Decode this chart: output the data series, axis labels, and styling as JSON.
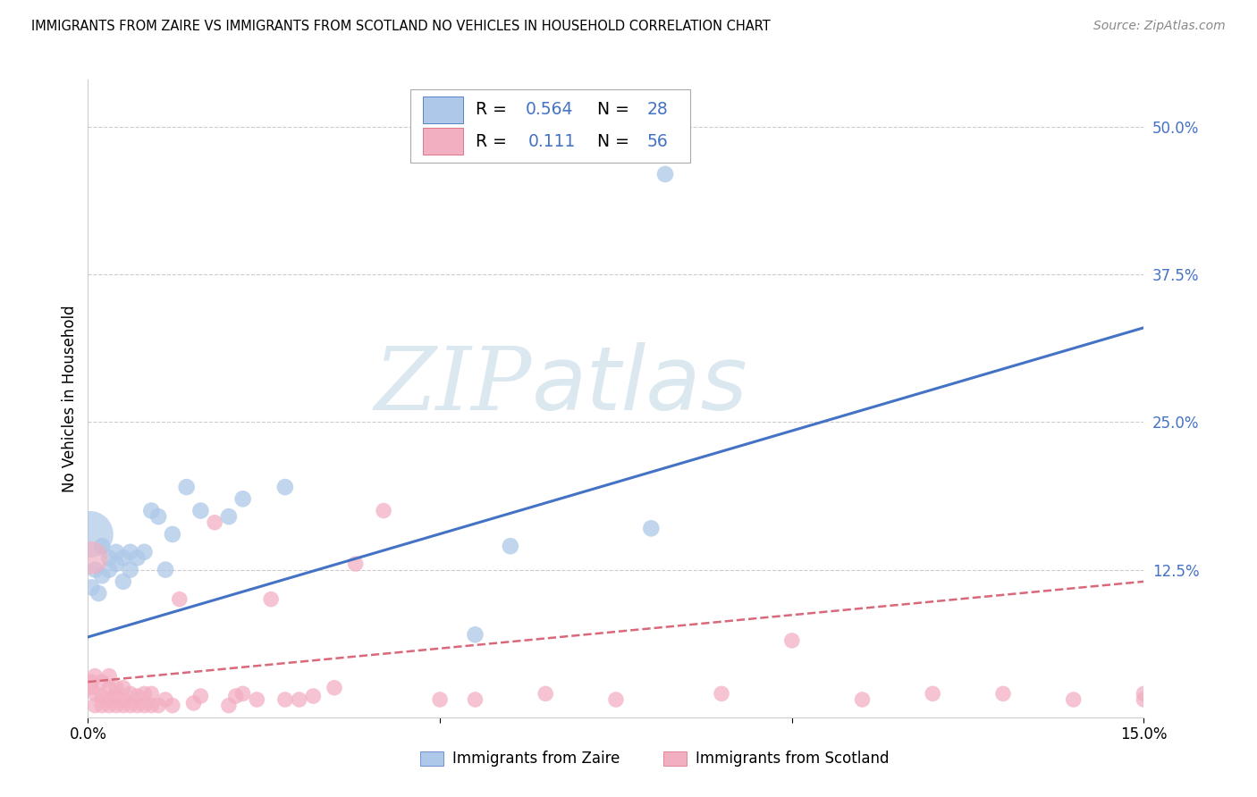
{
  "title": "IMMIGRANTS FROM ZAIRE VS IMMIGRANTS FROM SCOTLAND NO VEHICLES IN HOUSEHOLD CORRELATION CHART",
  "source": "Source: ZipAtlas.com",
  "ylabel": "No Vehicles in Household",
  "legend_labels": [
    "Immigrants from Zaire",
    "Immigrants from Scotland"
  ],
  "zaire_color": "#adc8e8",
  "scotland_color": "#f2afc2",
  "zaire_line_color": "#4472c4",
  "scotland_line_color": "#d9687a",
  "R_zaire": 0.564,
  "N_zaire": 28,
  "R_scotland": 0.111,
  "N_scotland": 56,
  "xlim": [
    0.0,
    0.15
  ],
  "ylim": [
    0.0,
    0.54
  ],
  "ytick_values_right": [
    0.5,
    0.375,
    0.25,
    0.125
  ],
  "ytick_labels_right": [
    "50.0%",
    "37.5%",
    "25.0%",
    "12.5%"
  ],
  "grid_color": "#cccccc",
  "background_color": "#ffffff",
  "zaire_line_y0": 0.068,
  "zaire_line_y1": 0.33,
  "scotland_line_y0": 0.03,
  "scotland_line_y1": 0.115,
  "zaire_x": [
    0.0005,
    0.001,
    0.0015,
    0.002,
    0.002,
    0.003,
    0.003,
    0.004,
    0.004,
    0.005,
    0.005,
    0.006,
    0.006,
    0.007,
    0.008,
    0.009,
    0.01,
    0.011,
    0.012,
    0.014,
    0.016,
    0.02,
    0.022,
    0.028,
    0.055,
    0.06,
    0.08,
    0.082
  ],
  "zaire_y": [
    0.11,
    0.125,
    0.105,
    0.12,
    0.145,
    0.135,
    0.125,
    0.13,
    0.14,
    0.115,
    0.135,
    0.14,
    0.125,
    0.135,
    0.14,
    0.175,
    0.17,
    0.125,
    0.155,
    0.195,
    0.175,
    0.17,
    0.185,
    0.195,
    0.07,
    0.145,
    0.16,
    0.46
  ],
  "zaire_sizes": [
    300,
    300,
    300,
    300,
    300,
    300,
    300,
    300,
    300,
    300,
    300,
    300,
    300,
    300,
    300,
    300,
    300,
    300,
    300,
    300,
    300,
    300,
    300,
    300,
    300,
    300,
    300,
    300
  ],
  "scotland_x": [
    0.0003,
    0.0005,
    0.001,
    0.001,
    0.001,
    0.002,
    0.002,
    0.002,
    0.003,
    0.003,
    0.003,
    0.003,
    0.004,
    0.004,
    0.004,
    0.005,
    0.005,
    0.005,
    0.006,
    0.006,
    0.007,
    0.007,
    0.008,
    0.008,
    0.009,
    0.009,
    0.01,
    0.011,
    0.012,
    0.013,
    0.015,
    0.016,
    0.018,
    0.02,
    0.021,
    0.022,
    0.024,
    0.026,
    0.028,
    0.03,
    0.032,
    0.035,
    0.038,
    0.042,
    0.05,
    0.055,
    0.065,
    0.075,
    0.09,
    0.1,
    0.11,
    0.12,
    0.13,
    0.14,
    0.15,
    0.15
  ],
  "scotland_y": [
    0.025,
    0.03,
    0.01,
    0.02,
    0.035,
    0.01,
    0.018,
    0.03,
    0.01,
    0.015,
    0.025,
    0.035,
    0.01,
    0.018,
    0.025,
    0.01,
    0.015,
    0.025,
    0.01,
    0.02,
    0.01,
    0.018,
    0.01,
    0.02,
    0.01,
    0.02,
    0.01,
    0.015,
    0.01,
    0.1,
    0.012,
    0.018,
    0.165,
    0.01,
    0.018,
    0.02,
    0.015,
    0.1,
    0.015,
    0.015,
    0.018,
    0.025,
    0.13,
    0.175,
    0.015,
    0.015,
    0.02,
    0.015,
    0.02,
    0.065,
    0.015,
    0.02,
    0.02,
    0.015,
    0.015,
    0.02
  ],
  "watermark_zip": "ZIP",
  "watermark_atlas": "atlas",
  "watermark_color": "#dce8f0"
}
